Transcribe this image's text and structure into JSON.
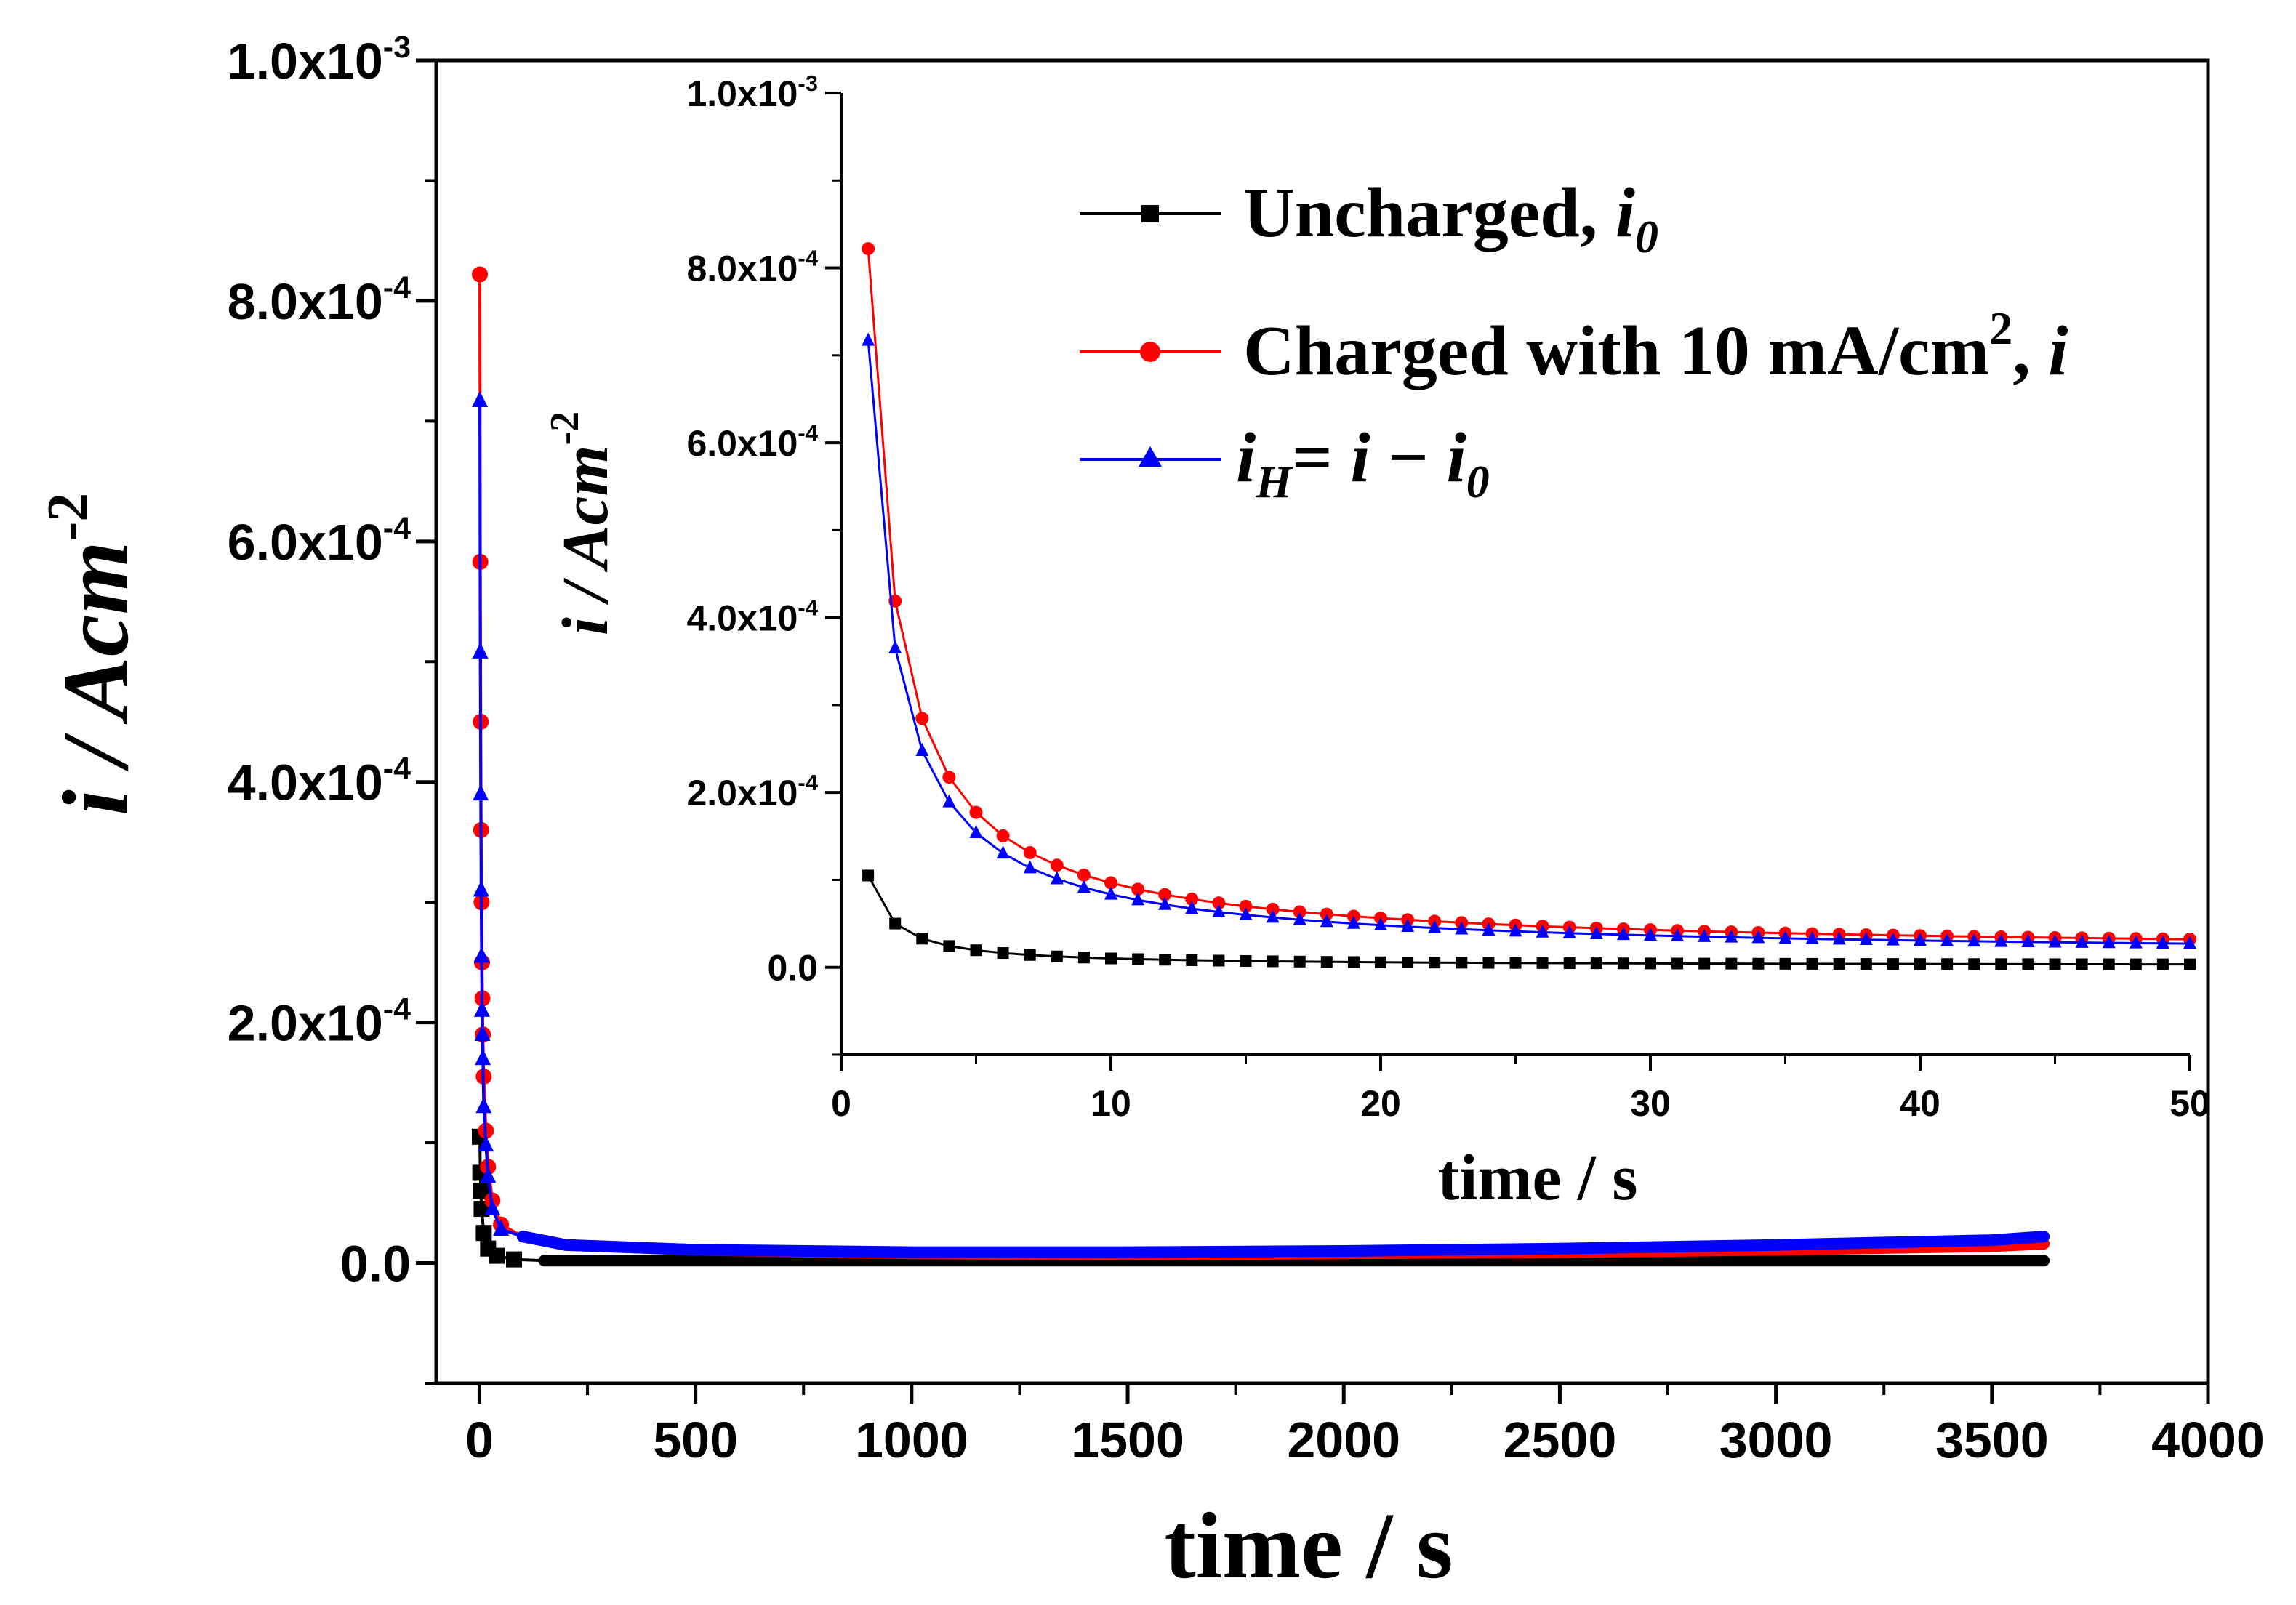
{
  "chart_data": [
    {
      "type": "scatter",
      "title": "",
      "xlabel": "time / s",
      "ylabel": "i / Acm",
      "ylabel_sup": "-2",
      "xlim": [
        -100,
        4000
      ],
      "ylim": [
        -0.0001,
        0.001
      ],
      "xticks": [
        0,
        500,
        1000,
        1500,
        2000,
        2500,
        3000,
        3500,
        4000
      ],
      "xtick_labels": [
        "0",
        "500",
        "1000",
        "1500",
        "2000",
        "2500",
        "3000",
        "3500",
        "4000"
      ],
      "yticks": [
        0,
        0.0002,
        0.0004,
        0.0006,
        0.0008,
        0.001
      ],
      "ytick_labels": [
        {
          "value": 0,
          "base": "0.0",
          "exp": ""
        },
        {
          "value": 0.0002,
          "base": "2.0x10",
          "exp": "-4"
        },
        {
          "value": 0.0004,
          "base": "4.0x10",
          "exp": "-4"
        },
        {
          "value": 0.0006,
          "base": "6.0x10",
          "exp": "-4"
        },
        {
          "value": 0.0008,
          "base": "8.0x10",
          "exp": "-4"
        },
        {
          "value": 0.001,
          "base": "1.0x10",
          "exp": "-3"
        }
      ],
      "x_end": 3620,
      "series": [
        {
          "name": "Uncharged, i0",
          "color": "#000000",
          "marker": "square",
          "points": [
            [
              1,
              0.000105
            ],
            [
              2,
              7.5e-05
            ],
            [
              3,
              6e-05
            ],
            [
              5,
              4.5e-05
            ],
            [
              10,
              2.5e-05
            ],
            [
              20,
              1.2e-05
            ],
            [
              40,
              6e-06
            ],
            [
              80,
              3e-06
            ],
            [
              150,
              2e-06
            ],
            [
              3620,
              2e-06
            ]
          ]
        },
        {
          "name": "Charged with 10 mA/cm2, i",
          "color": "#ff0000",
          "marker": "circle",
          "points": [
            [
              1,
              0.000822
            ],
            [
              2,
              0.000583
            ],
            [
              3,
              0.00045
            ],
            [
              4,
              0.00036
            ],
            [
              5,
              0.0003
            ],
            [
              6,
              0.00025
            ],
            [
              7,
              0.00022
            ],
            [
              8,
              0.00019
            ],
            [
              10,
              0.000155
            ],
            [
              15,
              0.00011
            ],
            [
              20,
              8e-05
            ],
            [
              30,
              5.2e-05
            ],
            [
              50,
              3.2e-05
            ],
            [
              100,
              2.2e-05
            ],
            [
              200,
              1.5e-05
            ],
            [
              500,
              1.1e-05
            ],
            [
              1000,
              8e-06
            ],
            [
              1500,
              7e-06
            ],
            [
              2000,
              8e-06
            ],
            [
              2500,
              9e-06
            ],
            [
              3000,
              1.1e-05
            ],
            [
              3500,
              1.4e-05
            ],
            [
              3620,
              1.6e-05
            ]
          ]
        },
        {
          "name": "iH = i - i0",
          "color": "#0000ff",
          "marker": "triangle",
          "points": [
            [
              1,
              0.000717
            ],
            [
              2,
              0.000508
            ],
            [
              3,
              0.00039
            ],
            [
              4,
              0.00031
            ],
            [
              5,
              0.000255
            ],
            [
              6,
              0.00021
            ],
            [
              7,
              0.00019
            ],
            [
              8,
              0.00017
            ],
            [
              10,
              0.00013
            ],
            [
              15,
              9.8e-05
            ],
            [
              20,
              7.2e-05
            ],
            [
              30,
              4.5e-05
            ],
            [
              50,
              2.8e-05
            ],
            [
              100,
              2.2e-05
            ],
            [
              200,
              1.5e-05
            ],
            [
              500,
              1.1e-05
            ],
            [
              1000,
              9e-06
            ],
            [
              1500,
              9e-06
            ],
            [
              2000,
              1e-05
            ],
            [
              2500,
              1.2e-05
            ],
            [
              3000,
              1.5e-05
            ],
            [
              3500,
              1.9e-05
            ],
            [
              3620,
              2.2e-05
            ]
          ]
        }
      ]
    },
    {
      "type": "line",
      "title": "",
      "xlabel": "time / s",
      "ylabel": "i / Acm",
      "ylabel_sup": "-2",
      "xlim": [
        0,
        50
      ],
      "ylim": [
        -0.0001,
        0.001
      ],
      "xticks": [
        0,
        10,
        20,
        30,
        40,
        50
      ],
      "xtick_labels": [
        "0",
        "10",
        "20",
        "30",
        "40",
        "50"
      ],
      "yticks": [
        0,
        0.0002,
        0.0004,
        0.0006,
        0.0008,
        0.001
      ],
      "ytick_labels": [
        {
          "value": 0,
          "base": "0.0",
          "exp": ""
        },
        {
          "value": 0.0002,
          "base": "2.0x10",
          "exp": "-4"
        },
        {
          "value": 0.0004,
          "base": "4.0x10",
          "exp": "-4"
        },
        {
          "value": 0.0006,
          "base": "6.0x10",
          "exp": "-4"
        },
        {
          "value": 0.0008,
          "base": "8.0x10",
          "exp": "-4"
        },
        {
          "value": 0.001,
          "base": "1.0x10",
          "exp": "-3"
        }
      ],
      "series": [
        {
          "name": "Uncharged, i0",
          "color": "#000000",
          "marker": "square",
          "model": {
            "a": 0.000105,
            "p": 1.1,
            "c": 2e-06
          }
        },
        {
          "name": "Charged with 10 mA/cm2, i",
          "color": "#ff0000",
          "marker": "circle",
          "model": {
            "a": 0.000822,
            "p": 1.0,
            "c": 1.6e-05
          }
        },
        {
          "name": "iH = i - i0",
          "color": "#0000ff",
          "marker": "triangle",
          "model": {
            "a": 0.000717,
            "p": 1.0,
            "c": 1.3e-05
          }
        }
      ],
      "x_start": 1,
      "x_step": 1,
      "x_end": 50
    }
  ],
  "legend": {
    "placement": "top-right of inset",
    "entries": [
      {
        "text": "Uncharged, ",
        "italic": "i",
        "sub": "0",
        "color": "#000000",
        "marker": "square"
      },
      {
        "text": "Charged with 10 mA/cm",
        "sup": "2",
        "tail": ", ",
        "italic": "i",
        "color": "#ff0000",
        "marker": "circle"
      },
      {
        "italic_h": "i",
        "sub_h": "H",
        "eq": "= ",
        "i": "i",
        "minus": " − ",
        "i2": "i",
        "sub2": "0",
        "color": "#0000ff",
        "marker": "triangle"
      }
    ]
  }
}
